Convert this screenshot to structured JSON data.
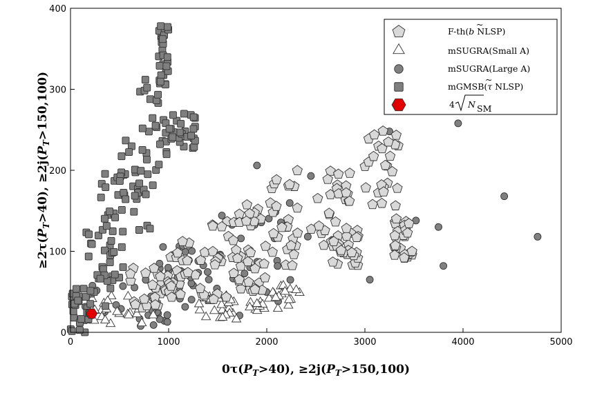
{
  "chart_data": {
    "type": "scatter",
    "xlabel": "0τ(P_T>40), ≥2j(P_T>150,100)",
    "ylabel": "≥2τ(P_T>40), ≥2j(P_T>150,100)",
    "xlim": [
      0,
      5000
    ],
    "ylim": [
      0,
      400
    ],
    "x_ticks": [
      "0",
      "1000",
      "2000",
      "3000",
      "4000",
      "5000"
    ],
    "y_ticks": [
      "0",
      "100",
      "200",
      "300",
      "400"
    ],
    "grid": false,
    "legend_position": "top-right",
    "series": [
      {
        "name": "F-th(b̃ NLSP)",
        "marker": "pentagon",
        "color": "#d9d9d9",
        "clusters": [
          {
            "x": [
              600,
              1000
            ],
            "y": [
              30,
              80
            ]
          },
          {
            "x": [
              1000,
              1400
            ],
            "y": [
              40,
              115
            ]
          },
          {
            "x": [
              1400,
              1750
            ],
            "y": [
              40,
              150
            ]
          },
          {
            "x": [
              1700,
              2000
            ],
            "y": [
              50,
              160
            ]
          },
          {
            "x": [
              2000,
              2350
            ],
            "y": [
              80,
              200
            ]
          },
          {
            "x": [
              2450,
              2850
            ],
            "y": [
              95,
              200
            ]
          },
          {
            "x": [
              2650,
              2950
            ],
            "y": [
              80,
              130
            ]
          },
          {
            "x": [
              3000,
              3350
            ],
            "y": [
              155,
              260
            ]
          },
          {
            "x": [
              3300,
              3500
            ],
            "y": [
              90,
              140
            ]
          }
        ],
        "points": [
          {
            "x": 3400,
            "y": 92
          },
          {
            "x": 3480,
            "y": 100
          },
          {
            "x": 3320,
            "y": 140
          }
        ]
      },
      {
        "name": "mSUGRA(Small A)",
        "marker": "triangle",
        "color": "#ffffff",
        "clusters": [
          {
            "x": [
              150,
              900
            ],
            "y": [
              10,
              45
            ]
          },
          {
            "x": [
              1300,
              1700
            ],
            "y": [
              15,
              45
            ]
          },
          {
            "x": [
              1800,
              2350
            ],
            "y": [
              25,
              60
            ]
          }
        ],
        "points": [
          {
            "x": 1550,
            "y": 18
          },
          {
            "x": 1900,
            "y": 35
          },
          {
            "x": 2300,
            "y": 52
          }
        ]
      },
      {
        "name": "mSUGRA(Large A)",
        "marker": "circle",
        "color": "#808080",
        "clusters": [
          {
            "x": [
              20,
              1200
            ],
            "y": [
              2,
              65
            ]
          },
          {
            "x": [
              900,
              1400
            ],
            "y": [
              40,
              110
            ]
          },
          {
            "x": [
              1400,
              2450
            ],
            "y": [
              20,
              160
            ]
          }
        ],
        "points": [
          {
            "x": 1900,
            "y": 206
          },
          {
            "x": 2450,
            "y": 193
          },
          {
            "x": 3050,
            "y": 65
          },
          {
            "x": 3250,
            "y": 248
          },
          {
            "x": 3520,
            "y": 138
          },
          {
            "x": 3750,
            "y": 130
          },
          {
            "x": 3800,
            "y": 82
          },
          {
            "x": 3950,
            "y": 258
          },
          {
            "x": 4420,
            "y": 168
          },
          {
            "x": 4760,
            "y": 118
          }
        ]
      },
      {
        "name": "mGMSB(τ̃ NLSP)",
        "marker": "square",
        "color": "#7f7f7f",
        "clusters": [
          {
            "x": [
              0,
              200
            ],
            "y": [
              0,
              60
            ]
          },
          {
            "x": [
              150,
              450
            ],
            "y": [
              30,
              150
            ]
          },
          {
            "x": [
              300,
              550
            ],
            "y": [
              60,
              200
            ]
          },
          {
            "x": [
              500,
              800
            ],
            "y": [
              120,
              240
            ]
          },
          {
            "x": [
              700,
              1000
            ],
            "y": [
              170,
              320
            ]
          },
          {
            "x": [
              900,
              1000
            ],
            "y": [
              300,
              378
            ]
          },
          {
            "x": [
              1000,
              1280
            ],
            "y": [
              225,
              275
            ]
          }
        ],
        "points": [
          {
            "x": 920,
            "y": 378
          },
          {
            "x": 990,
            "y": 377
          },
          {
            "x": 940,
            "y": 362
          },
          {
            "x": 780,
            "y": 302
          },
          {
            "x": 810,
            "y": 128
          }
        ]
      },
      {
        "name": "4√N_SM",
        "marker": "hexagon",
        "color": "#e00000",
        "points": [
          {
            "x": 215,
            "y": 23
          }
        ]
      }
    ]
  },
  "legend": {
    "entries": [
      {
        "pre": "F-th(",
        "accent": "b",
        "accent_mark": "~",
        "post": " NLSP)"
      },
      {
        "pre": "mSUGRA(Small A)",
        "accent": "",
        "accent_mark": "",
        "post": ""
      },
      {
        "pre": "mSUGRA(Large A)",
        "accent": "",
        "accent_mark": "",
        "post": ""
      },
      {
        "pre": "mGMSB(",
        "accent": "τ",
        "accent_mark": "~",
        "post": " NLSP)"
      },
      {
        "pre": "4",
        "accent": "N",
        "accent_mark": "",
        "post": "SM"
      }
    ]
  },
  "colors": {
    "background": "#ffffff",
    "axis": "#000000",
    "marker_stroke": "#333333",
    "sm_stroke": "#000000"
  }
}
